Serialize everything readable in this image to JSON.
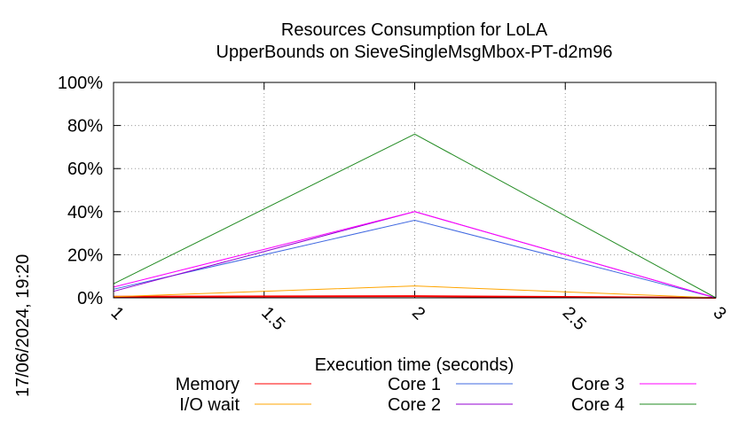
{
  "chart_data": {
    "type": "line",
    "title": "Resources Consumption for LoLA",
    "subtitle": "UpperBounds on SieveSingleMsgMbox-PT-d2m96",
    "xlabel": "Execution time (seconds)",
    "ylabel": "",
    "xlim": [
      1,
      3
    ],
    "ylim": [
      0,
      100
    ],
    "x_ticks": [
      "1",
      "1.5",
      "2",
      "2.5",
      "3"
    ],
    "x_tick_values": [
      1,
      1.5,
      2,
      2.5,
      3
    ],
    "y_ticks": [
      "0%",
      "20%",
      "40%",
      "60%",
      "80%",
      "100%"
    ],
    "y_tick_values": [
      0,
      20,
      40,
      60,
      80,
      100
    ],
    "grid": true,
    "legend_position": "bottom",
    "x": [
      1,
      2,
      3
    ],
    "series": [
      {
        "name": "Memory",
        "color": "#ff0000",
        "values": [
          0.5,
          0.8,
          0
        ]
      },
      {
        "name": "I/O wait",
        "color": "#ffa500",
        "values": [
          0.5,
          5.5,
          0
        ]
      },
      {
        "name": "Core 1",
        "color": "#4169e1",
        "values": [
          4,
          36,
          0
        ]
      },
      {
        "name": "Core 2",
        "color": "#9400d3",
        "values": [
          3,
          40,
          0
        ]
      },
      {
        "name": "Core 3",
        "color": "#ff00ff",
        "values": [
          5,
          40,
          0
        ]
      },
      {
        "name": "Core 4",
        "color": "#228b22",
        "values": [
          6.5,
          76,
          0
        ]
      }
    ]
  },
  "timestamp": "17/06/2024, 19:20"
}
